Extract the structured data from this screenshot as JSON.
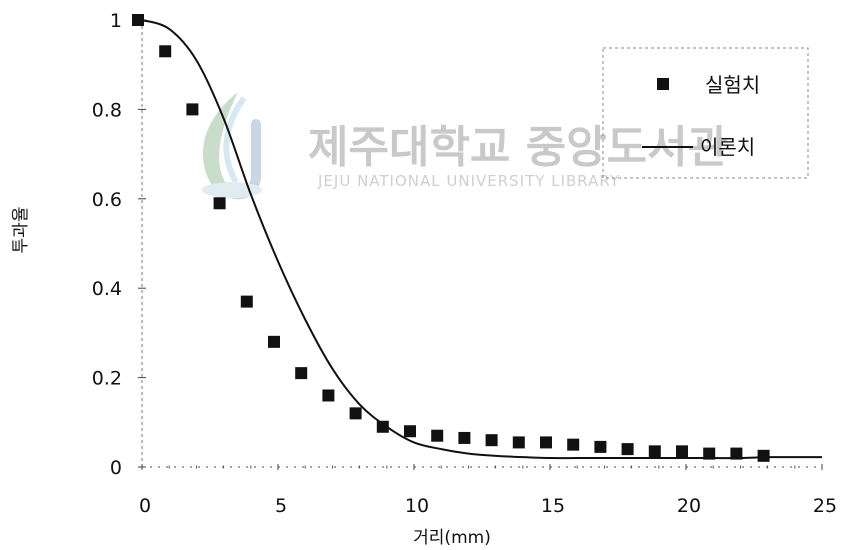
{
  "chart_data": {
    "type": "scatter",
    "title": "",
    "xlabel": "거리(mm)",
    "ylabel": "투과율",
    "xlim": [
      0,
      25
    ],
    "ylim": [
      0,
      1
    ],
    "x_ticks": [
      "0",
      "5",
      "10",
      "15",
      "20",
      "25"
    ],
    "y_ticks": [
      "0",
      "0.2",
      "0.4",
      "0.6",
      "0.8",
      "1"
    ],
    "grid": false,
    "legend_position": "top-right",
    "series": [
      {
        "name": "실험치",
        "kind": "markers",
        "marker": "square",
        "color": "#111111",
        "x": [
          0,
          1,
          2,
          3,
          4,
          5,
          6,
          7,
          8,
          9,
          10,
          11,
          12,
          13,
          14,
          15,
          16,
          17,
          18,
          19,
          20,
          21,
          22,
          23
        ],
        "y": [
          1.0,
          0.93,
          0.8,
          0.59,
          0.37,
          0.28,
          0.21,
          0.16,
          0.12,
          0.09,
          0.08,
          0.07,
          0.065,
          0.06,
          0.055,
          0.055,
          0.05,
          0.045,
          0.04,
          0.035,
          0.035,
          0.03,
          0.03,
          0.025
        ]
      },
      {
        "name": "이론치",
        "kind": "line",
        "color": "#111111",
        "x": [
          0,
          1,
          2,
          3,
          4,
          5,
          6,
          7,
          8,
          9,
          10,
          11,
          12,
          13,
          14,
          15,
          16,
          17,
          18,
          19,
          20,
          21,
          22,
          23,
          24,
          25
        ],
        "y": [
          1.0,
          0.98,
          0.91,
          0.78,
          0.61,
          0.46,
          0.33,
          0.22,
          0.14,
          0.09,
          0.055,
          0.04,
          0.03,
          0.025,
          0.022,
          0.02,
          0.02,
          0.02,
          0.02,
          0.02,
          0.02,
          0.02,
          0.02,
          0.022,
          0.022,
          0.022
        ]
      }
    ]
  },
  "watermark": {
    "title": "제주대학교 중앙도서관",
    "subtitle": "JEJU NATIONAL UNIVERSITY LIBRARY"
  }
}
